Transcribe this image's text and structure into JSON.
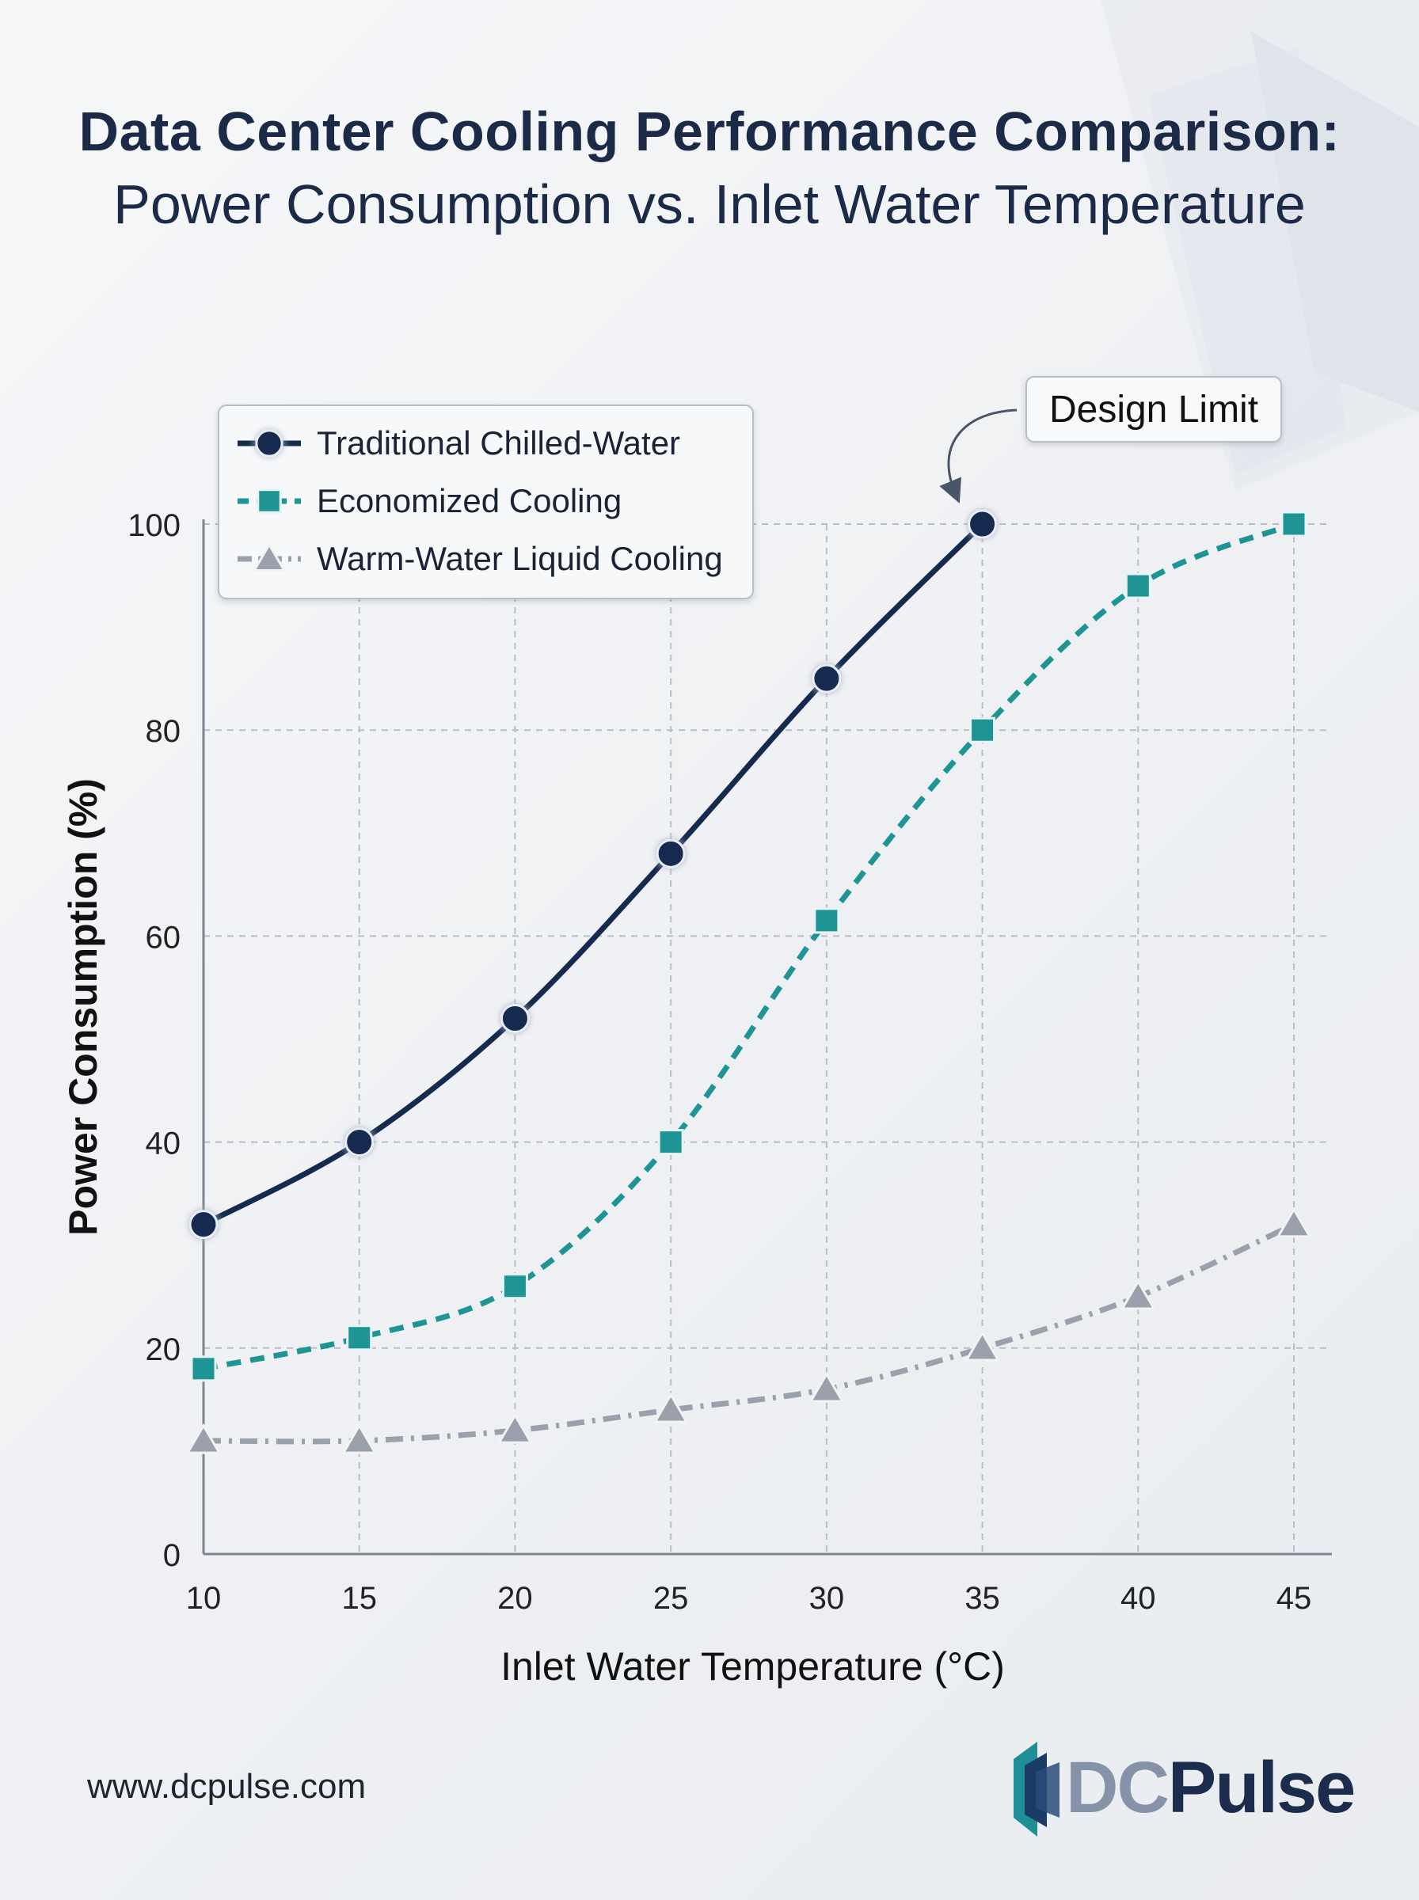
{
  "title": {
    "line1": "Data Center Cooling Performance Comparison:",
    "line2": "Power Consumption vs. Inlet Water Temperature"
  },
  "footer": {
    "url": "www.dcpulse.com",
    "logo_dc": "DC",
    "logo_pulse": "Pulse"
  },
  "colors": {
    "traditional": "#142a4f",
    "economized": "#1f9494",
    "warm": "#9aa0ac"
  },
  "chart_data": {
    "type": "line",
    "xlabel": "Inlet Water Temperature (°C)",
    "ylabel": "Power Consumption (%)",
    "xlim": [
      10,
      45
    ],
    "ylim": [
      0,
      100
    ],
    "x_ticks": [
      10,
      15,
      20,
      25,
      30,
      35,
      40,
      45
    ],
    "y_ticks": [
      0,
      20,
      40,
      60,
      80,
      100
    ],
    "grid": true,
    "legend_position": "top-left",
    "series": [
      {
        "name": "Traditional Chilled-Water",
        "marker": "circle",
        "line_style": "solid",
        "x": [
          10,
          15,
          20,
          25,
          30,
          35
        ],
        "y": [
          32,
          40,
          52,
          68,
          85,
          100
        ]
      },
      {
        "name": "Economized Cooling",
        "marker": "square",
        "line_style": "dashed",
        "x": [
          10,
          15,
          20,
          25,
          30,
          35,
          40,
          45
        ],
        "y": [
          18,
          21,
          26,
          40,
          61.5,
          80,
          94,
          100
        ]
      },
      {
        "name": "Warm-Water Liquid Cooling",
        "marker": "triangle",
        "line_style": "dash-dot",
        "x": [
          10,
          15,
          20,
          25,
          30,
          35,
          40,
          45
        ],
        "y": [
          11,
          11,
          12,
          14,
          16,
          20,
          25,
          32
        ]
      }
    ],
    "annotations": [
      {
        "text": "Design Limit",
        "x": 35,
        "y": 100
      }
    ]
  }
}
